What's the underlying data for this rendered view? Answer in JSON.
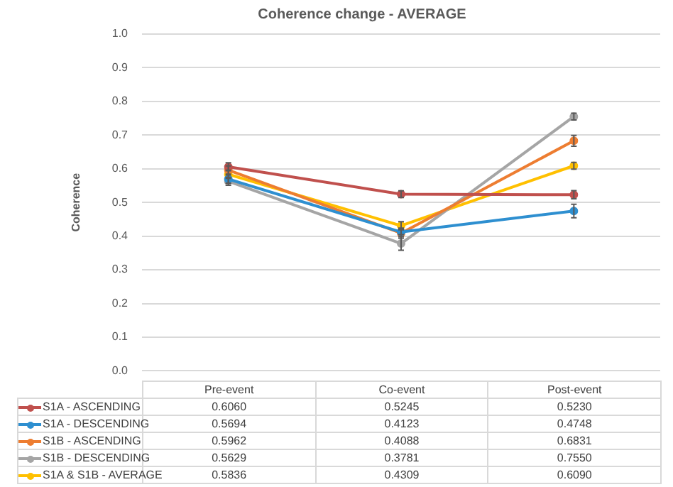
{
  "chart_data": {
    "type": "line",
    "title": "Coherence change - AVERAGE",
    "ylabel": "Coherence",
    "categories": [
      "Pre-event",
      "Co-event",
      "Post-event"
    ],
    "series": [
      {
        "name": "S1A - ASCENDING",
        "color": "#c0504d",
        "values": [
          0.606,
          0.5245,
          0.523
        ],
        "value_labels": [
          "0.6060",
          "0.5245",
          "0.5230"
        ],
        "errors": [
          0.012,
          0.01,
          0.012
        ]
      },
      {
        "name": "S1A - DESCENDING",
        "color": "#2e8fd0",
        "values": [
          0.5694,
          0.4123,
          0.4748
        ],
        "value_labels": [
          "0.5694",
          "0.4123",
          "0.4748"
        ],
        "errors": [
          0.012,
          0.008,
          0.02
        ]
      },
      {
        "name": "S1B - ASCENDING",
        "color": "#ed7d31",
        "values": [
          0.5962,
          0.4088,
          0.6831
        ],
        "value_labels": [
          "0.5962",
          "0.4088",
          "0.6831"
        ],
        "errors": [
          0.012,
          0.015,
          0.016
        ]
      },
      {
        "name": "S1B - DESCENDING",
        "color": "#a5a5a5",
        "values": [
          0.5629,
          0.3781,
          0.755
        ],
        "value_labels": [
          "0.5629",
          "0.3781",
          "0.7550"
        ],
        "errors": [
          0.012,
          0.02,
          0.01
        ]
      },
      {
        "name": "S1A & S1B - AVERAGE",
        "color": "#ffc000",
        "values": [
          0.5836,
          0.4309,
          0.609
        ],
        "value_labels": [
          "0.5836",
          "0.4309",
          "0.6090"
        ],
        "errors": [
          0.012,
          0.012,
          0.01
        ]
      }
    ],
    "ylim": [
      0,
      1
    ],
    "yticks": [
      {
        "value": 0,
        "label": "0.0"
      },
      0.1,
      0.2,
      0.3,
      0.4,
      0.5,
      0.6,
      0.7,
      0.8,
      0.9,
      {
        "value": 1,
        "label": "1.0"
      }
    ],
    "grid": "y",
    "legend": "bottom",
    "marker": "circle",
    "line_style": "solid"
  }
}
